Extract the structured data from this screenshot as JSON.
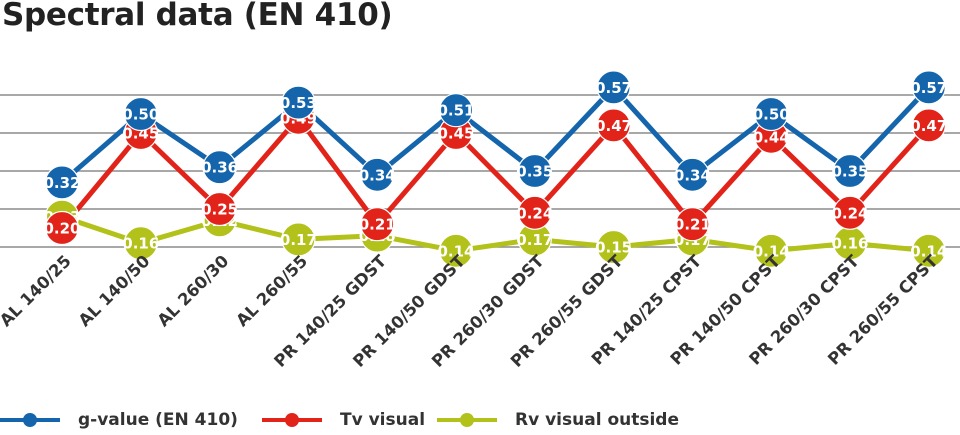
{
  "chart_data": {
    "type": "line",
    "title": "Spectral data (EN 410)",
    "categories": [
      "AL 140/25",
      "AL 140/50",
      "AL 260/30",
      "AL 260/55",
      "PR 140/25 GDST",
      "PR 140/50 GDST",
      "PR 260/30 GDST",
      "PR 260/55 GDST",
      "PR 140/25 CPST",
      "PR 140/50 CPST",
      "PR 260/30 CPST",
      "PR 260/55 CPST"
    ],
    "series": [
      {
        "name": "g-value (EN 410)",
        "color": "#1565ad",
        "values": [
          0.32,
          0.5,
          0.36,
          0.53,
          0.34,
          0.51,
          0.35,
          0.57,
          0.34,
          0.5,
          0.35,
          0.57
        ]
      },
      {
        "name": "Tv visual",
        "color": "#e2231a",
        "values": [
          0.2,
          0.45,
          0.25,
          0.49,
          0.21,
          0.45,
          0.24,
          0.47,
          0.21,
          0.44,
          0.24,
          0.47
        ]
      },
      {
        "name": "Rv visual outside",
        "color": "#b3c21b",
        "values": [
          0.23,
          0.16,
          0.22,
          0.17,
          0.18,
          0.14,
          0.17,
          0.15,
          0.17,
          0.14,
          0.16,
          0.14
        ]
      }
    ],
    "grid": true,
    "legend_position": "bottom"
  }
}
